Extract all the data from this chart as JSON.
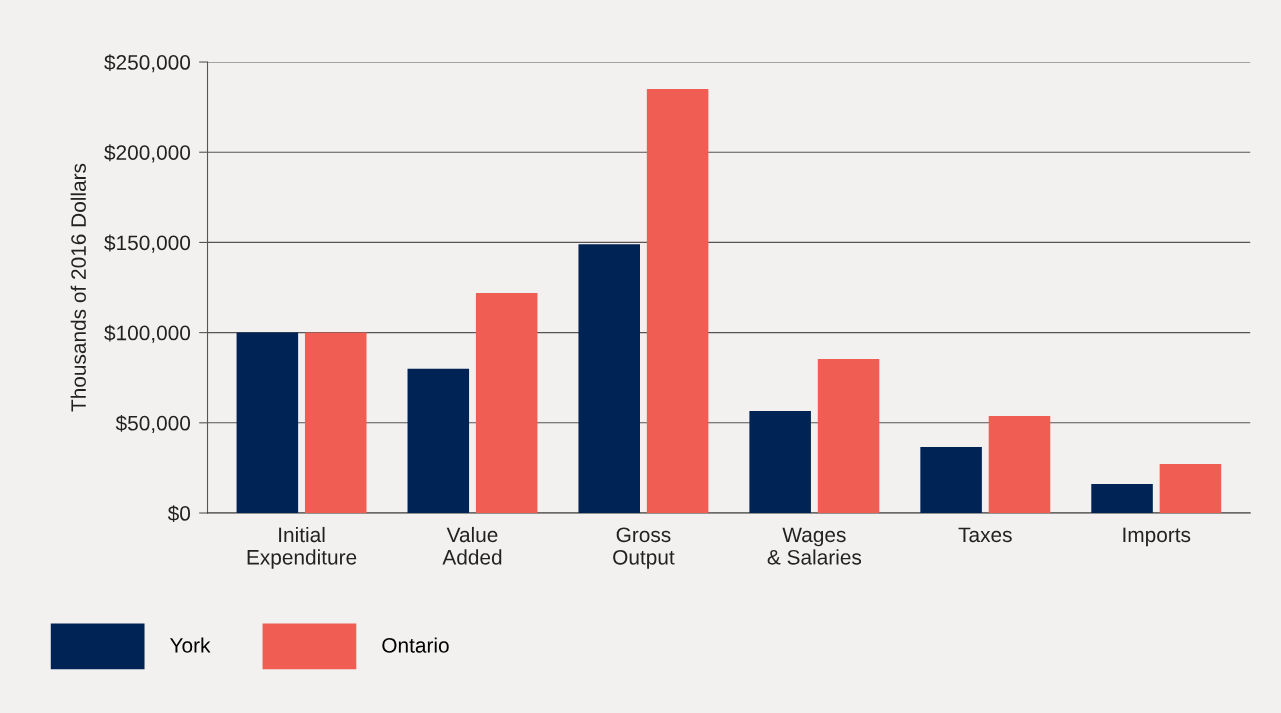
{
  "chart_data": {
    "type": "bar",
    "ylabel": "Thousands of 2016 Dollars",
    "categories": [
      "Initial\nExpenditure",
      "Value\nAdded",
      "Gross\nOutput",
      "Wages\n& Salaries",
      "Taxes",
      "Imports"
    ],
    "series": [
      {
        "name": "York",
        "color": "#002356",
        "values": [
          100000,
          80000,
          149000,
          56500,
          36600,
          16100
        ]
      },
      {
        "name": "Ontario",
        "color": "#f05d52",
        "values": [
          100000,
          122000,
          235000,
          85400,
          53800,
          27200
        ]
      }
    ],
    "ylim": [
      0,
      250000
    ],
    "yticks": [
      {
        "value": 0,
        "label": "$0"
      },
      {
        "value": 50000,
        "label": "$50,000"
      },
      {
        "value": 100000,
        "label": "$100,000"
      },
      {
        "value": 150000,
        "label": "$150,000"
      },
      {
        "value": 200000,
        "label": "$200,000"
      },
      {
        "value": 250000,
        "label": "$250,000"
      }
    ],
    "grid": "y",
    "legend": "bottom left"
  }
}
